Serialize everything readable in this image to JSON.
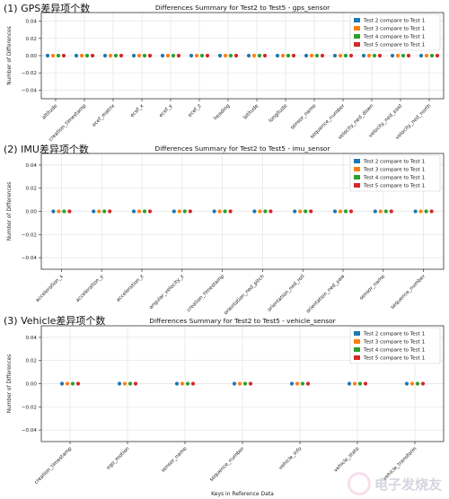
{
  "headings": [
    "(1)  GPS差异项个数",
    "(2)  IMU差异项个数",
    "(3)  Vehicle差异项个数"
  ],
  "watermark": "电子发烧友",
  "colors": [
    "#1f77b4",
    "#ff7f0e",
    "#2ca02c",
    "#d62728"
  ],
  "chart_data": [
    {
      "type": "scatter",
      "title": "Differences Summary for Test2 to Test5 - gps_sensor",
      "ylabel": "Number of Differences",
      "xlabel": "",
      "ylim": [
        -0.05,
        0.05
      ],
      "yticks": [
        "0.04",
        "0.02",
        "0.00",
        "−0.02",
        "−0.04"
      ],
      "legend_position": "top-right",
      "grid": true,
      "categories": [
        "altitude",
        "creation_timestamp",
        "ecef_matrix",
        "ecef_x",
        "ecef_y",
        "ecef_z",
        "heading",
        "latitude",
        "longitude",
        "sensor_name",
        "sequence_number",
        "velocity_ned_down",
        "velocity_ned_east",
        "velocity_ned_north"
      ],
      "series": [
        {
          "name": "Test 2 compare to Test 1",
          "values": [
            0,
            0,
            0,
            0,
            0,
            0,
            0,
            0,
            0,
            0,
            0,
            0,
            0,
            0
          ]
        },
        {
          "name": "Test 3 compare to Test 1",
          "values": [
            0,
            0,
            0,
            0,
            0,
            0,
            0,
            0,
            0,
            0,
            0,
            0,
            0,
            0
          ]
        },
        {
          "name": "Test 4 compare to Test 1",
          "values": [
            0,
            0,
            0,
            0,
            0,
            0,
            0,
            0,
            0,
            0,
            0,
            0,
            0,
            0
          ]
        },
        {
          "name": "Test 5 compare to Test 1",
          "values": [
            0,
            0,
            0,
            0,
            0,
            0,
            0,
            0,
            0,
            0,
            0,
            0,
            0,
            0
          ]
        }
      ]
    },
    {
      "type": "scatter",
      "title": "Differences Summary for Test2 to Test5 - imu_sensor",
      "ylabel": "Number of Differences",
      "xlabel": "",
      "ylim": [
        -0.05,
        0.05
      ],
      "yticks": [
        "0.04",
        "0.02",
        "0.00",
        "−0.02",
        "−0.04"
      ],
      "legend_position": "top-right",
      "grid": true,
      "categories": [
        "acceleration_x",
        "acceleration_y",
        "acceleration_z",
        "angular_velocity_z",
        "creation_timestamp",
        "orientation_ned_pitch",
        "orientation_ned_roll",
        "orientation_ned_yaw",
        "sensor_name",
        "sequence_number"
      ],
      "series": [
        {
          "name": "Test 2 compare to Test 1",
          "values": [
            0,
            0,
            0,
            0,
            0,
            0,
            0,
            0,
            0,
            0
          ]
        },
        {
          "name": "Test 3 compare to Test 1",
          "values": [
            0,
            0,
            0,
            0,
            0,
            0,
            0,
            0,
            0,
            0
          ]
        },
        {
          "name": "Test 4 compare to Test 1",
          "values": [
            0,
            0,
            0,
            0,
            0,
            0,
            0,
            0,
            0,
            0
          ]
        },
        {
          "name": "Test 5 compare to Test 1",
          "values": [
            0,
            0,
            0,
            0,
            0,
            0,
            0,
            0,
            0,
            0
          ]
        }
      ]
    },
    {
      "type": "scatter",
      "title": "Differences Summary for Test2 to Test5 - vehicle_sensor",
      "ylabel": "Number of Differences",
      "xlabel": "Keys in Reference Data",
      "ylim": [
        -0.05,
        0.05
      ],
      "yticks": [
        "0.04",
        "0.02",
        "0.00",
        "−0.02",
        "−0.04"
      ],
      "legend_position": "top-right",
      "grid": true,
      "categories": [
        "creation_timestamp",
        "ego_motion",
        "sensor_name",
        "sequence_number",
        "vehicle_info",
        "vehicle_state",
        "vehicle_transform"
      ],
      "series": [
        {
          "name": "Test 2 compare to Test 1",
          "values": [
            0,
            0,
            0,
            0,
            0,
            0,
            0
          ]
        },
        {
          "name": "Test 3 compare to Test 1",
          "values": [
            0,
            0,
            0,
            0,
            0,
            0,
            0
          ]
        },
        {
          "name": "Test 4 compare to Test 1",
          "values": [
            0,
            0,
            0,
            0,
            0,
            0,
            0
          ]
        },
        {
          "name": "Test 5 compare to Test 1",
          "values": [
            0,
            0,
            0,
            0,
            0,
            0,
            0
          ]
        }
      ]
    }
  ]
}
